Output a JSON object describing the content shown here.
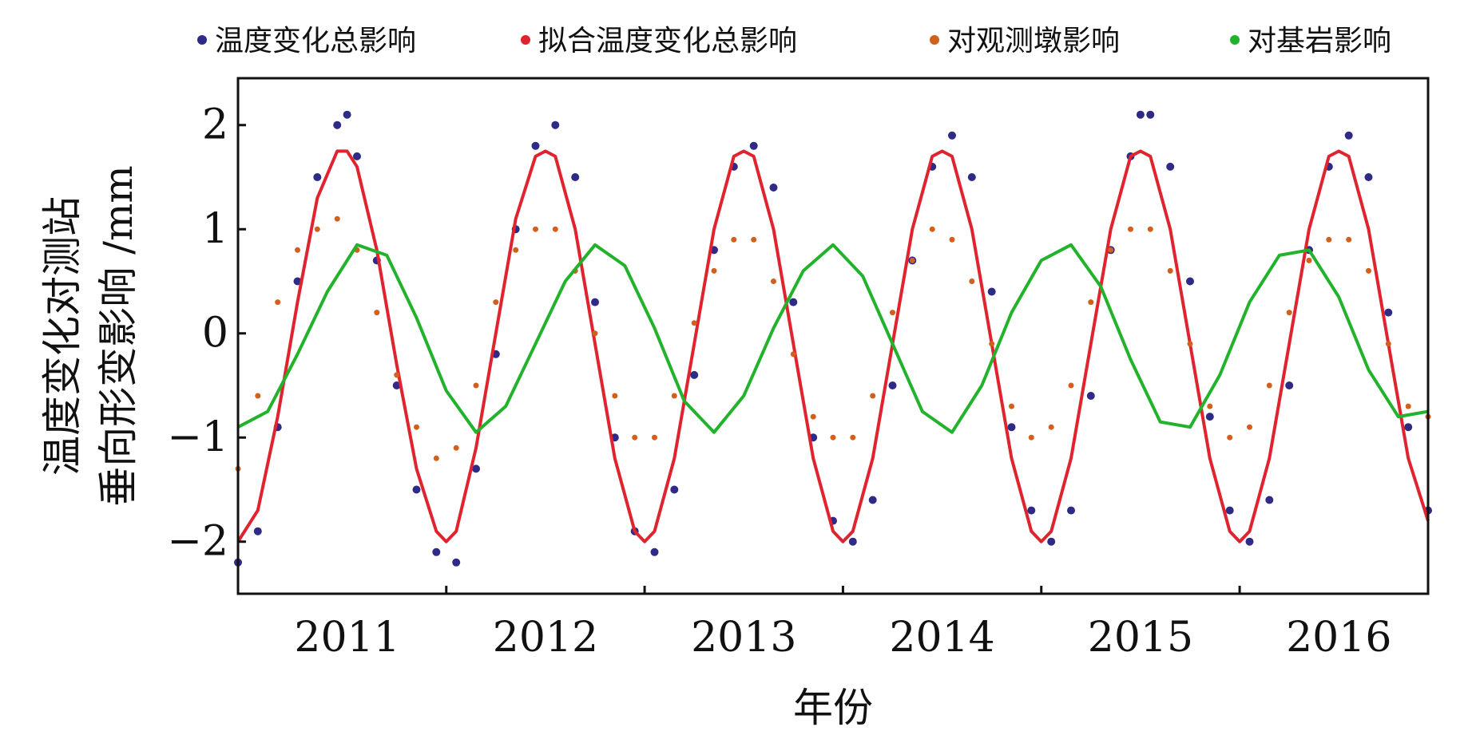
{
  "chart_data": {
    "type": "scatter",
    "title": "",
    "xlabel": "年份",
    "ylabel_lines": [
      "温度变化对测站",
      "垂向形变影响 /mm"
    ],
    "xlim": [
      2010.45,
      2016.45
    ],
    "ylim": [
      -2.5,
      2.45
    ],
    "grid": false,
    "legend_position": "top",
    "x_ticks": [
      2011,
      2012,
      2013,
      2014,
      2015,
      2016
    ],
    "x_tick_labels": [
      "2011",
      "2012",
      "2013",
      "2014",
      "2015",
      "2016"
    ],
    "x_minor_ticks": [
      2011.5,
      2012.5,
      2013.5,
      2014.5,
      2015.5
    ],
    "y_ticks": [
      -2,
      -1,
      0,
      1,
      2
    ],
    "y_tick_labels": [
      "−2",
      "−1",
      "0",
      "1",
      "2"
    ],
    "series": [
      {
        "name": "温度变化总影响",
        "kind": "points",
        "color": "#2e2a86",
        "x": [
          2010.45,
          2010.55,
          2010.65,
          2010.75,
          2010.85,
          2010.95,
          2011.0,
          2011.05,
          2011.15,
          2011.25,
          2011.35,
          2011.45,
          2011.55,
          2011.65,
          2011.75,
          2011.85,
          2011.95,
          2012.05,
          2012.15,
          2012.25,
          2012.35,
          2012.45,
          2012.55,
          2012.65,
          2012.75,
          2012.85,
          2012.95,
          2013.05,
          2013.15,
          2013.25,
          2013.35,
          2013.45,
          2013.55,
          2013.65,
          2013.75,
          2013.85,
          2013.95,
          2014.05,
          2014.15,
          2014.25,
          2014.35,
          2014.45,
          2014.55,
          2014.65,
          2014.75,
          2014.85,
          2014.95,
          2015.0,
          2015.05,
          2015.15,
          2015.25,
          2015.35,
          2015.45,
          2015.55,
          2015.65,
          2015.75,
          2015.85,
          2015.95,
          2016.05,
          2016.15,
          2016.25,
          2016.35,
          2016.45
        ],
        "y": [
          -2.2,
          -1.9,
          -0.9,
          0.5,
          1.5,
          2.0,
          2.1,
          1.7,
          0.7,
          -0.5,
          -1.5,
          -2.1,
          -2.2,
          -1.3,
          -0.2,
          1.0,
          1.8,
          2.0,
          1.5,
          0.3,
          -1.0,
          -1.9,
          -2.1,
          -1.5,
          -0.4,
          0.8,
          1.6,
          1.8,
          1.4,
          0.3,
          -1.0,
          -1.8,
          -2.0,
          -1.6,
          -0.5,
          0.7,
          1.6,
          1.9,
          1.5,
          0.4,
          -0.9,
          -1.7,
          -2.0,
          -1.7,
          -0.6,
          0.8,
          1.7,
          2.1,
          2.1,
          1.6,
          0.5,
          -0.8,
          -1.7,
          -2.0,
          -1.6,
          -0.5,
          0.8,
          1.6,
          1.9,
          1.5,
          0.2,
          -0.9,
          -1.7
        ]
      },
      {
        "name": "拟合温度变化总影响",
        "kind": "line",
        "color": "#e0242f",
        "x": [
          2010.45,
          2010.55,
          2010.65,
          2010.75,
          2010.85,
          2010.95,
          2011.0,
          2011.05,
          2011.15,
          2011.25,
          2011.35,
          2011.45,
          2011.5,
          2011.55,
          2011.65,
          2011.75,
          2011.85,
          2011.95,
          2012.0,
          2012.05,
          2012.15,
          2012.25,
          2012.35,
          2012.45,
          2012.5,
          2012.55,
          2012.65,
          2012.75,
          2012.85,
          2012.95,
          2013.0,
          2013.05,
          2013.15,
          2013.25,
          2013.35,
          2013.45,
          2013.5,
          2013.55,
          2013.65,
          2013.75,
          2013.85,
          2013.95,
          2014.0,
          2014.05,
          2014.15,
          2014.25,
          2014.35,
          2014.45,
          2014.5,
          2014.55,
          2014.65,
          2014.75,
          2014.85,
          2014.95,
          2015.0,
          2015.05,
          2015.15,
          2015.25,
          2015.35,
          2015.45,
          2015.5,
          2015.55,
          2015.65,
          2015.75,
          2015.85,
          2015.95,
          2016.0,
          2016.05,
          2016.15,
          2016.25,
          2016.35,
          2016.45
        ],
        "y": [
          -2.0,
          -1.7,
          -0.8,
          0.3,
          1.3,
          1.75,
          1.75,
          1.6,
          0.8,
          -0.3,
          -1.3,
          -1.9,
          -2.0,
          -1.9,
          -1.1,
          0.0,
          1.1,
          1.7,
          1.75,
          1.7,
          1.0,
          -0.1,
          -1.2,
          -1.9,
          -2.0,
          -1.9,
          -1.2,
          -0.1,
          1.0,
          1.7,
          1.75,
          1.7,
          1.0,
          -0.1,
          -1.2,
          -1.9,
          -2.0,
          -1.9,
          -1.2,
          -0.1,
          1.0,
          1.7,
          1.75,
          1.7,
          1.0,
          -0.1,
          -1.2,
          -1.9,
          -2.0,
          -1.9,
          -1.2,
          -0.1,
          1.0,
          1.7,
          1.75,
          1.7,
          1.0,
          -0.1,
          -1.2,
          -1.9,
          -2.0,
          -1.9,
          -1.2,
          -0.1,
          1.0,
          1.7,
          1.75,
          1.7,
          1.0,
          -0.1,
          -1.2,
          -1.8
        ]
      },
      {
        "name": "对观测墩影响",
        "kind": "points",
        "color": "#d35f1c",
        "x": [
          2010.45,
          2010.55,
          2010.65,
          2010.75,
          2010.85,
          2010.95,
          2011.05,
          2011.15,
          2011.25,
          2011.35,
          2011.45,
          2011.55,
          2011.65,
          2011.75,
          2011.85,
          2011.95,
          2012.05,
          2012.15,
          2012.25,
          2012.35,
          2012.45,
          2012.55,
          2012.65,
          2012.75,
          2012.85,
          2012.95,
          2013.05,
          2013.15,
          2013.25,
          2013.35,
          2013.45,
          2013.55,
          2013.65,
          2013.75,
          2013.85,
          2013.95,
          2014.05,
          2014.15,
          2014.25,
          2014.35,
          2014.45,
          2014.55,
          2014.65,
          2014.75,
          2014.85,
          2014.95,
          2015.05,
          2015.15,
          2015.25,
          2015.35,
          2015.45,
          2015.55,
          2015.65,
          2015.75,
          2015.85,
          2015.95,
          2016.05,
          2016.15,
          2016.25,
          2016.35,
          2016.45
        ],
        "y": [
          -1.3,
          -0.6,
          0.3,
          0.8,
          1.0,
          1.1,
          0.8,
          0.2,
          -0.4,
          -0.9,
          -1.2,
          -1.1,
          -0.5,
          0.3,
          0.8,
          1.0,
          1.0,
          0.6,
          0.0,
          -0.6,
          -1.0,
          -1.0,
          -0.6,
          0.1,
          0.6,
          0.9,
          0.9,
          0.5,
          -0.2,
          -0.8,
          -1.0,
          -1.0,
          -0.6,
          0.2,
          0.7,
          1.0,
          0.9,
          0.5,
          -0.1,
          -0.7,
          -1.0,
          -0.9,
          -0.5,
          0.3,
          0.8,
          1.0,
          1.0,
          0.6,
          -0.1,
          -0.7,
          -1.0,
          -0.9,
          -0.5,
          0.2,
          0.7,
          0.9,
          0.9,
          0.6,
          -0.1,
          -0.7,
          -0.8
        ]
      },
      {
        "name": "对基岩影响",
        "kind": "line",
        "color": "#22b22c",
        "x": [
          2010.45,
          2010.6,
          2010.75,
          2010.9,
          2011.05,
          2011.2,
          2011.35,
          2011.5,
          2011.65,
          2011.8,
          2011.95,
          2012.1,
          2012.25,
          2012.4,
          2012.55,
          2012.7,
          2012.85,
          2013.0,
          2013.15,
          2013.3,
          2013.45,
          2013.6,
          2013.75,
          2013.9,
          2014.05,
          2014.2,
          2014.35,
          2014.5,
          2014.65,
          2014.8,
          2014.95,
          2015.1,
          2015.25,
          2015.4,
          2015.55,
          2015.7,
          2015.85,
          2016.0,
          2016.15,
          2016.3,
          2016.45
        ],
        "y": [
          -0.9,
          -0.75,
          -0.2,
          0.4,
          0.85,
          0.75,
          0.15,
          -0.55,
          -0.95,
          -0.7,
          -0.1,
          0.5,
          0.85,
          0.65,
          0.05,
          -0.65,
          -0.95,
          -0.6,
          0.05,
          0.6,
          0.85,
          0.55,
          -0.1,
          -0.75,
          -0.95,
          -0.5,
          0.2,
          0.7,
          0.85,
          0.45,
          -0.25,
          -0.85,
          -0.9,
          -0.4,
          0.3,
          0.75,
          0.8,
          0.35,
          -0.35,
          -0.8,
          -0.75
        ]
      }
    ]
  }
}
